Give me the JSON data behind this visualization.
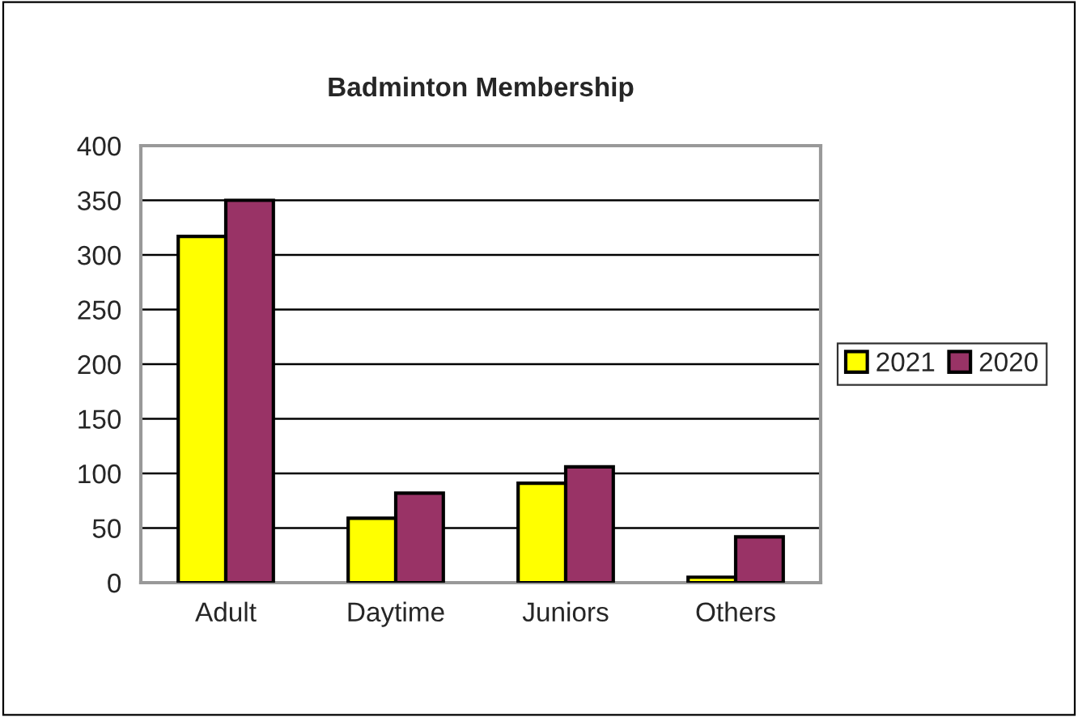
{
  "chart_data": {
    "type": "bar",
    "title": "Badminton Membership",
    "categories": [
      "Adult",
      "Daytime",
      "Juniors",
      "Others"
    ],
    "series": [
      {
        "name": "2021",
        "color": "#ffff00",
        "values": [
          317,
          59,
          91,
          5
        ]
      },
      {
        "name": "2020",
        "color": "#993366",
        "values": [
          350,
          82,
          106,
          42
        ]
      }
    ],
    "ylim": [
      0,
      400
    ],
    "yticks": [
      0,
      50,
      100,
      150,
      200,
      250,
      300,
      350,
      400
    ],
    "grid": "y",
    "legend": "right"
  }
}
